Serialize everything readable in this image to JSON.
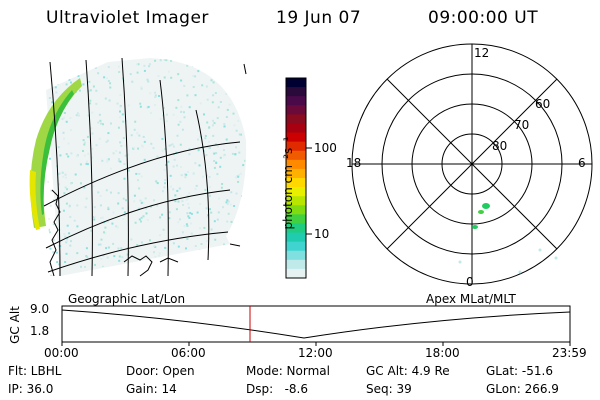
{
  "header": {
    "instrument": "Ultraviolet Imager",
    "date": "19 Jun 07",
    "time": "09:00:00 UT"
  },
  "colorbar": {
    "unit_label": "photon cm⁻²s⁻¹",
    "ticks": [
      "100",
      "10"
    ],
    "colors": [
      "#000033",
      "#2a0a3a",
      "#4a0a4a",
      "#6a0a3a",
      "#8a0a20",
      "#a80010",
      "#cc0000",
      "#e02a00",
      "#f05a00",
      "#ff8a00",
      "#ffb000",
      "#ffd800",
      "#e8f000",
      "#b8e600",
      "#80dc10",
      "#40d040",
      "#20cc80",
      "#20ccb0",
      "#40d4d0",
      "#80e0e0",
      "#c0eaea",
      "#e6f2f2"
    ]
  },
  "polar_plot": {
    "mlt_labels": [
      "12",
      "18",
      "6",
      "0"
    ],
    "lat_labels": [
      "60",
      "70",
      "80"
    ]
  },
  "timeline": {
    "left_title": "Geographic Lat/Lon",
    "right_title": "Apex MLat/MLT",
    "axis_label": "GC Alt",
    "y_values": [
      "9.0",
      "1.8"
    ],
    "time_ticks": [
      "00:00",
      "06:00",
      "12:00",
      "18:00",
      "23:59"
    ]
  },
  "info": {
    "filter": "Flt: LBHL",
    "ip": "IP: 36.0",
    "door": "Door: Open",
    "gain": "Gain: 14",
    "mode": "Mode: Normal",
    "dsp": "Dsp:   -8.6",
    "gc_alt": "GC Alt: 4.9 Re",
    "seq": "Seq: 39",
    "glat": "GLat: -51.6",
    "glon": "GLon: 266.9"
  }
}
